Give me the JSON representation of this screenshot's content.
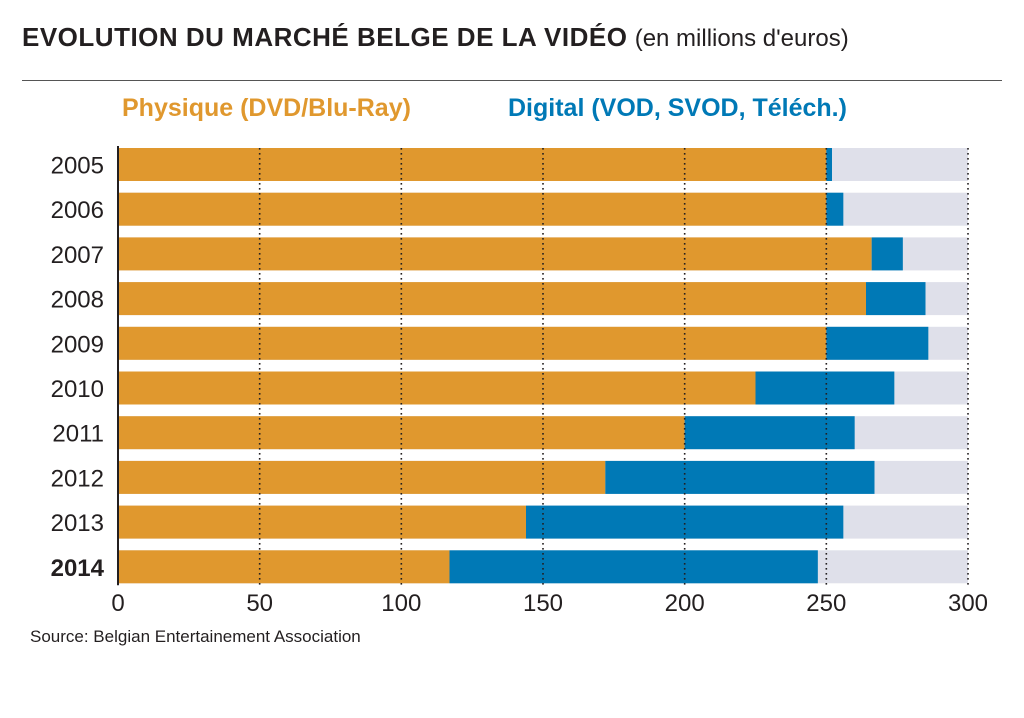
{
  "title": {
    "main": "EVOLUTION DU MARCHÉ BELGE DE LA VIDÉO",
    "unit": "(en millions d'euros)"
  },
  "source": "Source: Belgian Entertainement Association",
  "colors": {
    "physique": "#e0982e",
    "digital": "#0079b6",
    "track": "#dfe0ea",
    "text": "#231f20"
  },
  "chart_data": {
    "type": "bar",
    "orientation": "horizontal",
    "stacked": true,
    "categories": [
      "2005",
      "2006",
      "2007",
      "2008",
      "2009",
      "2010",
      "2011",
      "2012",
      "2013",
      "2014"
    ],
    "highlight_category": "2014",
    "series": [
      {
        "name": "Physique (DVD/Blu-Ray)",
        "values": [
          250,
          250,
          266,
          264,
          250,
          225,
          200,
          172,
          144,
          117
        ]
      },
      {
        "name": "Digital (VOD, SVOD, Téléch.)",
        "values": [
          2,
          6,
          11,
          21,
          36,
          49,
          60,
          95,
          112,
          130
        ]
      }
    ],
    "xlim": [
      0,
      300
    ],
    "xticks": [
      "0",
      "50",
      "100",
      "150",
      "200",
      "250",
      "300"
    ],
    "grid": "dotted vertical",
    "legend": "top"
  }
}
